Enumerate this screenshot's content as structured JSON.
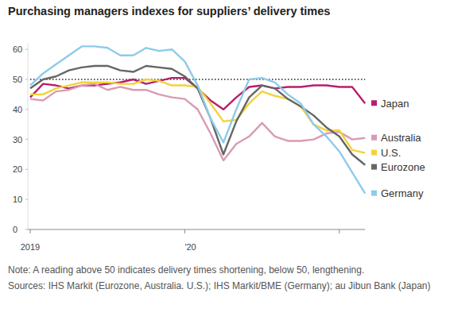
{
  "chart_data": {
    "type": "line",
    "title": "Purchasing managers indexes for suppliers’ delivery times",
    "categories": [
      "2019",
      null,
      null,
      null,
      null,
      null,
      null,
      null,
      null,
      null,
      null,
      null,
      "'20",
      null,
      null,
      null,
      null,
      null,
      null,
      null,
      null,
      null,
      null,
      null,
      null,
      null,
      null
    ],
    "series": [
      {
        "name": "Japan",
        "color": "#b5206e",
        "values": [
          44,
          48.5,
          48,
          47,
          48,
          48,
          48.5,
          49,
          50,
          48.5,
          49.5,
          50.5,
          50.5,
          47,
          43,
          40,
          44,
          47.5,
          48,
          47,
          47.5,
          47.5,
          48,
          48,
          47.5,
          47.5,
          42
        ]
      },
      {
        "name": "Australia",
        "color": "#d99bb5",
        "values": [
          43.5,
          43,
          46,
          46.5,
          48,
          48.5,
          46.5,
          47.5,
          46.5,
          46.5,
          45,
          44,
          43.5,
          40,
          32,
          23,
          28.5,
          31,
          35.5,
          31,
          29.5,
          29.5,
          30,
          32,
          32.5,
          30,
          30.5
        ]
      },
      {
        "name": "U.S.",
        "color": "#f2d23c",
        "values": [
          45,
          45,
          47,
          48,
          49,
          49,
          49,
          48.5,
          48.5,
          50,
          49.5,
          48,
          48,
          47.5,
          42,
          36,
          36.5,
          42,
          46,
          44.5,
          43.5,
          41,
          35,
          33,
          33,
          26.5,
          25.5
        ]
      },
      {
        "name": "Eurozone",
        "color": "#666666",
        "values": [
          47,
          50,
          51,
          53,
          54,
          54.5,
          54.5,
          53,
          52.5,
          54.5,
          54,
          53.5,
          51,
          47,
          37,
          25,
          36,
          44,
          48,
          47,
          43.5,
          41,
          38,
          34,
          31,
          25,
          21.5
        ]
      },
      {
        "name": "Germany",
        "color": "#8ecbe8",
        "values": [
          48,
          52,
          55,
          58,
          61,
          61,
          60.5,
          58,
          58,
          60.5,
          59.5,
          60,
          56,
          48,
          37,
          29,
          40,
          50,
          50.5,
          49,
          45,
          42,
          35,
          31,
          26,
          19,
          12
        ]
      }
    ],
    "ylim": [
      0,
      62
    ],
    "yticks": [
      0,
      10,
      20,
      30,
      40,
      50,
      60
    ],
    "threshold": 50,
    "note": "Note: A reading above 50 indicates delivery times shortening, below 50, lengthening.",
    "sources": "Sources: IHS Markit (Eurozone, Australia. U.S.); IHS Markit/BME (Germany); au Jibun Bank (Japan)"
  }
}
